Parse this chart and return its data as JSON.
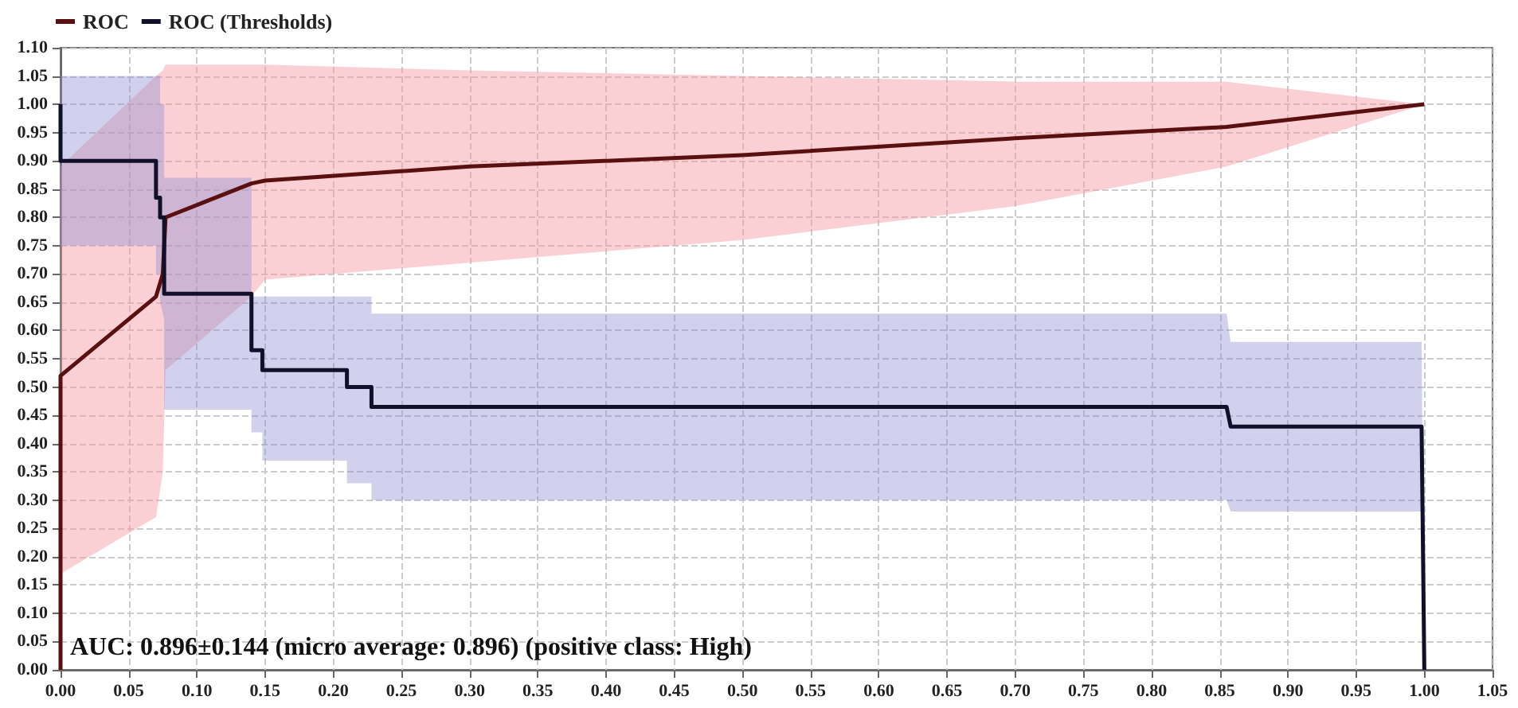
{
  "chart_data": {
    "type": "line",
    "legend": "top left",
    "grid": true,
    "line_style": "solid",
    "marker": "none",
    "annotations": [
      "AUC: 0.896±0.144 (micro average: 0.896) (positive class: High)"
    ],
    "xlim": [
      0,
      1.05
    ],
    "ylim": [
      0,
      1.1
    ],
    "xticks": [
      {
        "value": 0,
        "label": "0.00"
      },
      {
        "value": 0.05,
        "label": "0.05"
      },
      {
        "value": 0.1,
        "label": "0.10"
      },
      {
        "value": 0.15,
        "label": "0.15"
      },
      {
        "value": 0.2,
        "label": "0.20"
      },
      {
        "value": 0.25,
        "label": "0.25"
      },
      {
        "value": 0.3,
        "label": "0.30"
      },
      {
        "value": 0.35,
        "label": "0.35"
      },
      {
        "value": 0.4,
        "label": "0.40"
      },
      {
        "value": 0.45,
        "label": "0.45"
      },
      {
        "value": 0.5,
        "label": "0.50"
      },
      {
        "value": 0.55,
        "label": "0.55"
      },
      {
        "value": 0.6,
        "label": "0.60"
      },
      {
        "value": 0.65,
        "label": "0.65"
      },
      {
        "value": 0.7,
        "label": "0.70"
      },
      {
        "value": 0.75,
        "label": "0.75"
      },
      {
        "value": 0.8,
        "label": "0.80"
      },
      {
        "value": 0.85,
        "label": "0.85"
      },
      {
        "value": 0.9,
        "label": "0.90"
      },
      {
        "value": 0.95,
        "label": "0.95"
      },
      {
        "value": 1,
        "label": "1.00"
      },
      {
        "value": 1.05,
        "label": "1.05"
      }
    ],
    "yticks": [
      {
        "value": 0,
        "label": "0.00"
      },
      {
        "value": 0.05,
        "label": "0.05"
      },
      {
        "value": 0.1,
        "label": "0.10"
      },
      {
        "value": 0.15,
        "label": "0.15"
      },
      {
        "value": 0.2,
        "label": "0.20"
      },
      {
        "value": 0.25,
        "label": "0.25"
      },
      {
        "value": 0.3,
        "label": "0.30"
      },
      {
        "value": 0.35,
        "label": "0.35"
      },
      {
        "value": 0.4,
        "label": "0.40"
      },
      {
        "value": 0.45,
        "label": "0.45"
      },
      {
        "value": 0.5,
        "label": "0.50"
      },
      {
        "value": 0.55,
        "label": "0.55"
      },
      {
        "value": 0.6,
        "label": "0.60"
      },
      {
        "value": 0.65,
        "label": "0.65"
      },
      {
        "value": 0.7,
        "label": "0.70"
      },
      {
        "value": 0.75,
        "label": "0.75"
      },
      {
        "value": 0.8,
        "label": "0.80"
      },
      {
        "value": 0.85,
        "label": "0.85"
      },
      {
        "value": 0.9,
        "label": "0.90"
      },
      {
        "value": 0.95,
        "label": "0.95"
      },
      {
        "value": 1,
        "label": "1.00"
      },
      {
        "value": 1.05,
        "label": "1.05"
      },
      {
        "value": 1.1,
        "label": "1.10"
      }
    ],
    "series": [
      {
        "name": "ROC",
        "color": "#5a1010",
        "x": [
          0,
          0,
          0.07,
          0.075,
          0.077,
          0.14,
          0.15,
          0.3,
          0.5,
          0.7,
          0.855,
          1.0
        ],
        "values": [
          0,
          0.52,
          0.66,
          0.7,
          0.8,
          0.86,
          0.865,
          0.89,
          0.91,
          0.94,
          0.96,
          1.0
        ],
        "lower": [
          0,
          0.17,
          0.27,
          0.35,
          0.53,
          0.66,
          0.69,
          0.72,
          0.76,
          0.82,
          0.89,
          1.0
        ],
        "upper": [
          0,
          0.89,
          1.05,
          1.06,
          1.07,
          1.07,
          1.07,
          1.06,
          1.05,
          1.04,
          1.04,
          1.0
        ]
      },
      {
        "name": "ROC (Thresholds)",
        "color": "#10102a",
        "x": [
          0,
          0,
          0.07,
          0.07,
          0.073,
          0.073,
          0.076,
          0.076,
          0.14,
          0.14,
          0.148,
          0.148,
          0.21,
          0.21,
          0.228,
          0.228,
          0.855,
          0.858,
          0.998,
          1.0
        ],
        "values": [
          1.0,
          0.9,
          0.9,
          0.835,
          0.835,
          0.8,
          0.8,
          0.665,
          0.665,
          0.565,
          0.565,
          0.53,
          0.53,
          0.5,
          0.5,
          0.465,
          0.465,
          0.43,
          0.43,
          0
        ],
        "lower": [
          1.0,
          0.75,
          0.75,
          0.7,
          0.7,
          0.65,
          0.62,
          0.46,
          0.46,
          0.42,
          0.42,
          0.37,
          0.37,
          0.33,
          0.33,
          0.3,
          0.3,
          0.28,
          0.28,
          0
        ],
        "upper": [
          1.0,
          1.05,
          1.05,
          1.05,
          1.05,
          1.0,
          1.0,
          0.87,
          0.87,
          0.66,
          0.66,
          0.66,
          0.66,
          0.66,
          0.66,
          0.63,
          0.63,
          0.58,
          0.58,
          0
        ]
      }
    ]
  }
}
